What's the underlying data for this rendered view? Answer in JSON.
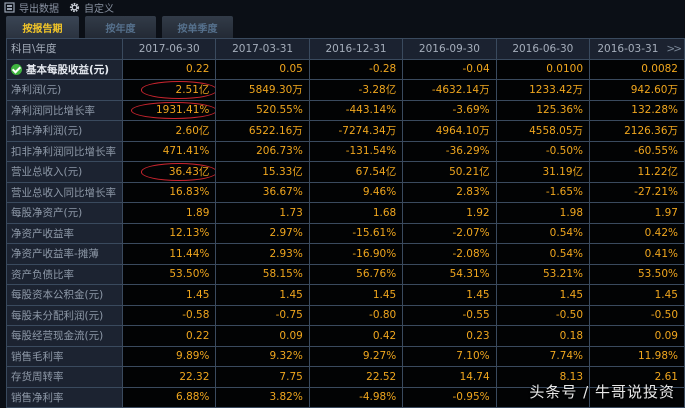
{
  "toolbar": {
    "export_label": "导出数据",
    "customize_label": "自定义",
    "export_icon": "export-icon",
    "customize_icon": "gear-icon"
  },
  "tabs": [
    {
      "label": "按报告期",
      "active": true
    },
    {
      "label": "按年度",
      "active": false
    },
    {
      "label": "按单季度",
      "active": false
    }
  ],
  "table": {
    "corner_label": "科目\\年度",
    "more_label": "»",
    "columns": [
      "2017-06-30",
      "2017-03-31",
      "2016-12-31",
      "2016-09-30",
      "2016-06-30",
      "2016-03-31"
    ],
    "rows": [
      {
        "label": "基本每股收益(元)",
        "values": [
          "0.22",
          "0.05",
          "-0.28",
          "-0.04",
          "0.0100",
          "0.0082"
        ]
      },
      {
        "label": "净利润(元)",
        "values": [
          "2.51亿",
          "5849.30万",
          "-3.28亿",
          "-4632.14万",
          "1233.42万",
          "942.60万"
        ]
      },
      {
        "label": "净利润同比增长率",
        "values": [
          "1931.41%",
          "520.55%",
          "-443.14%",
          "-3.69%",
          "125.36%",
          "132.28%"
        ]
      },
      {
        "label": "扣非净利润(元)",
        "values": [
          "2.60亿",
          "6522.16万",
          "-7274.34万",
          "4964.10万",
          "4558.05万",
          "2126.36万"
        ]
      },
      {
        "label": "扣非净利润同比增长率",
        "values": [
          "471.41%",
          "206.73%",
          "-131.54%",
          "-36.29%",
          "-0.50%",
          "-60.55%"
        ]
      },
      {
        "label": "营业总收入(元)",
        "values": [
          "36.43亿",
          "15.33亿",
          "67.54亿",
          "50.21亿",
          "31.19亿",
          "11.22亿"
        ]
      },
      {
        "label": "营业总收入同比增长率",
        "values": [
          "16.83%",
          "36.67%",
          "9.46%",
          "2.83%",
          "-1.65%",
          "-27.21%"
        ]
      },
      {
        "label": "每股净资产(元)",
        "values": [
          "1.89",
          "1.73",
          "1.68",
          "1.92",
          "1.98",
          "1.97"
        ]
      },
      {
        "label": "净资产收益率",
        "values": [
          "12.13%",
          "2.97%",
          "-15.61%",
          "-2.07%",
          "0.54%",
          "0.42%"
        ]
      },
      {
        "label": "净资产收益率-摊薄",
        "values": [
          "11.44%",
          "2.93%",
          "-16.90%",
          "-2.08%",
          "0.54%",
          "0.41%"
        ]
      },
      {
        "label": "资产负债比率",
        "values": [
          "53.50%",
          "58.15%",
          "56.76%",
          "54.31%",
          "53.21%",
          "53.50%"
        ]
      },
      {
        "label": "每股资本公积金(元)",
        "values": [
          "1.45",
          "1.45",
          "1.45",
          "1.45",
          "1.45",
          "1.45"
        ]
      },
      {
        "label": "每股未分配利润(元)",
        "values": [
          "-0.58",
          "-0.75",
          "-0.80",
          "-0.55",
          "-0.50",
          "-0.50"
        ]
      },
      {
        "label": "每股经营现金流(元)",
        "values": [
          "0.22",
          "0.09",
          "0.42",
          "0.23",
          "0.18",
          "0.09"
        ]
      },
      {
        "label": "销售毛利率",
        "values": [
          "9.89%",
          "9.32%",
          "9.27%",
          "7.10%",
          "7.74%",
          "11.98%"
        ]
      },
      {
        "label": "存货周转率",
        "values": [
          "22.32",
          "7.75",
          "22.52",
          "14.74",
          "8.13",
          "2.61"
        ]
      },
      {
        "label": "销售净利率",
        "values": [
          "6.88%",
          "3.82%",
          "-4.98%",
          "-0.95%",
          "",
          ""
        ]
      }
    ]
  },
  "annotations": {
    "highlighted_cells": [
      "2.51亿",
      "1931.41%",
      "36.43亿"
    ],
    "oval_color": "#c9242e"
  },
  "colors": {
    "value_text": "#f0a61e",
    "active_tab_text": "#f3c628",
    "grid_line": "#3a4a5e"
  },
  "watermark": "头条号 / 牛哥说投资"
}
